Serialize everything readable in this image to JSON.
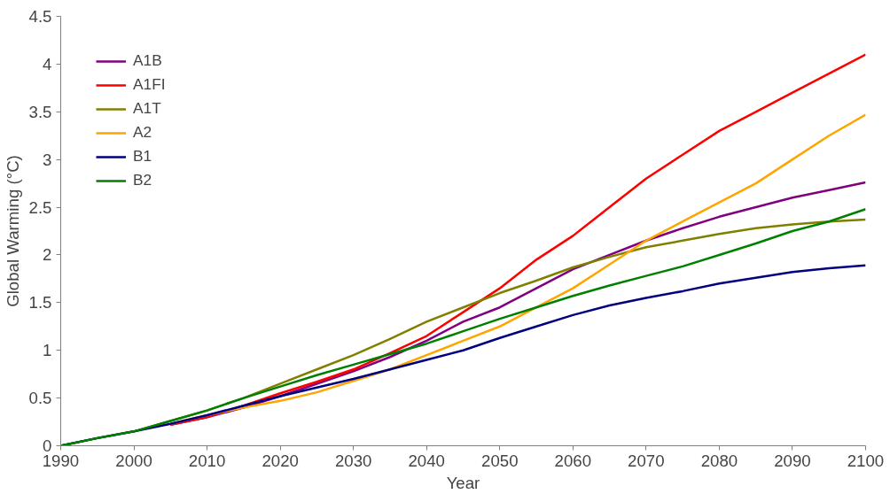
{
  "chart_data": {
    "type": "line",
    "xlabel": "Year",
    "ylabel": "Global Warming (°C)",
    "x": [
      1990,
      1995,
      2000,
      2005,
      2010,
      2015,
      2020,
      2025,
      2030,
      2035,
      2040,
      2045,
      2050,
      2055,
      2060,
      2065,
      2070,
      2075,
      2080,
      2085,
      2090,
      2095,
      2100
    ],
    "series": [
      {
        "name": "A1B",
        "color": "#800080",
        "values": [
          null,
          null,
          null,
          0.22,
          0.3,
          0.4,
          0.52,
          0.65,
          0.78,
          0.93,
          1.1,
          1.3,
          1.45,
          1.65,
          1.85,
          2.0,
          2.15,
          2.28,
          2.4,
          2.5,
          2.6,
          2.68,
          2.76
        ]
      },
      {
        "name": "A1FI",
        "color": "#ff0000",
        "values": [
          null,
          null,
          null,
          0.22,
          0.3,
          0.42,
          0.55,
          0.67,
          0.8,
          0.97,
          1.15,
          1.4,
          1.65,
          1.95,
          2.2,
          2.5,
          2.8,
          3.05,
          3.3,
          3.5,
          3.7,
          3.9,
          4.1
        ]
      },
      {
        "name": "A1T",
        "color": "#808000",
        "values": [
          0,
          0.08,
          0.15,
          0.26,
          0.37,
          0.5,
          0.65,
          0.8,
          0.95,
          1.12,
          1.3,
          1.45,
          1.6,
          1.73,
          1.87,
          1.98,
          2.08,
          2.15,
          2.22,
          2.28,
          2.32,
          2.35,
          2.37
        ]
      },
      {
        "name": "A2",
        "color": "#ffa500",
        "values": [
          null,
          null,
          null,
          0.23,
          0.32,
          0.4,
          0.47,
          0.56,
          0.68,
          0.8,
          0.95,
          1.1,
          1.25,
          1.45,
          1.65,
          1.9,
          2.15,
          2.35,
          2.55,
          2.75,
          3.0,
          3.25,
          3.47
        ]
      },
      {
        "name": "B1",
        "color": "#000080",
        "values": [
          0,
          0.08,
          0.15,
          0.23,
          0.32,
          0.42,
          0.52,
          0.61,
          0.7,
          0.8,
          0.9,
          1.0,
          1.13,
          1.25,
          1.37,
          1.47,
          1.55,
          1.62,
          1.7,
          1.76,
          1.82,
          1.86,
          1.89
        ]
      },
      {
        "name": "B2",
        "color": "#008000",
        "values": [
          0,
          0.08,
          0.15,
          0.26,
          0.37,
          0.5,
          0.62,
          0.74,
          0.85,
          0.96,
          1.07,
          1.2,
          1.33,
          1.45,
          1.57,
          1.68,
          1.78,
          1.88,
          2.0,
          2.12,
          2.25,
          2.35,
          2.48
        ]
      }
    ],
    "xlim": [
      1990,
      2100
    ],
    "xticks": [
      1990,
      2000,
      2010,
      2020,
      2030,
      2040,
      2050,
      2060,
      2070,
      2080,
      2090,
      2100
    ],
    "ylim": [
      0,
      4.5
    ],
    "yticks": [
      0,
      0.5,
      1,
      1.5,
      2,
      2.5,
      3,
      3.5,
      4,
      4.5
    ],
    "grid": false,
    "legend": "top left",
    "marker": "none",
    "line_style": "solid"
  }
}
